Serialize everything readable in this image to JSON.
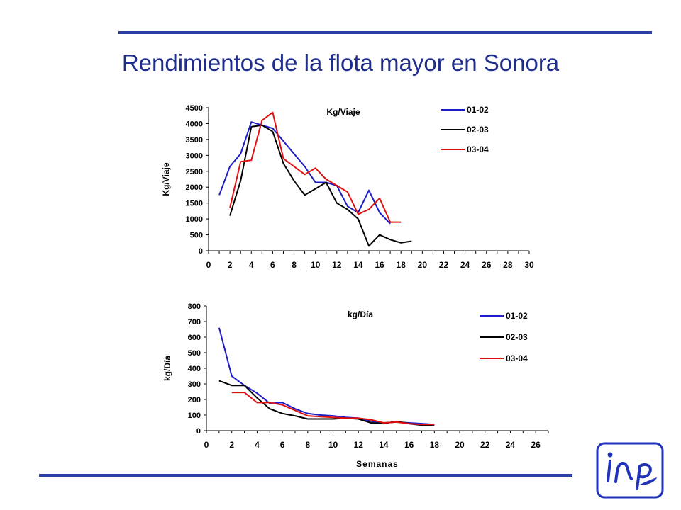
{
  "slide": {
    "title": "Rendimientos de la flota mayor en Sonora",
    "colors": {
      "rule": "#2b3ea8",
      "title": "#1f2e8c"
    }
  },
  "logo": {
    "icon": "inp-logo-icon",
    "text": "iNP",
    "color": "#2233bb"
  },
  "chart_data": [
    {
      "type": "line",
      "title": "Kg/Viaje",
      "xlabel": "",
      "ylabel": "Kg/Viaje",
      "xlim": [
        0,
        30
      ],
      "ylim": [
        0,
        4500
      ],
      "xticks": [
        0,
        2,
        4,
        6,
        8,
        10,
        12,
        14,
        16,
        18,
        20,
        22,
        24,
        26,
        28,
        30
      ],
      "yticks": [
        0,
        500,
        1000,
        1500,
        2000,
        2500,
        3000,
        3500,
        4000,
        4500
      ],
      "legend": "top-right",
      "grid": false,
      "series": [
        {
          "name": "01-02",
          "color": "#1c1cc8",
          "x": [
            1,
            2,
            3,
            4,
            5,
            6,
            7,
            8,
            9,
            10,
            11,
            12,
            13,
            14,
            15,
            16,
            17
          ],
          "y": [
            1750,
            2650,
            3050,
            4050,
            3950,
            3850,
            3450,
            3050,
            2650,
            2150,
            2150,
            2050,
            1400,
            1200,
            1900,
            1200,
            850
          ]
        },
        {
          "name": "02-03",
          "color": "#000000",
          "x": [
            2,
            3,
            4,
            5,
            6,
            7,
            8,
            9,
            10,
            11,
            12,
            13,
            14,
            15,
            16,
            17,
            18,
            19
          ],
          "y": [
            1100,
            2200,
            3900,
            3950,
            3750,
            2750,
            2200,
            1750,
            1950,
            2150,
            1500,
            1300,
            1000,
            150,
            500,
            350,
            250,
            300
          ]
        },
        {
          "name": "03-04",
          "color": "#e01010",
          "x": [
            2,
            3,
            4,
            5,
            6,
            7,
            8,
            9,
            10,
            11,
            12,
            13,
            14,
            15,
            16,
            17,
            18
          ],
          "y": [
            1350,
            2800,
            2850,
            4100,
            4350,
            2900,
            2650,
            2400,
            2600,
            2250,
            2050,
            1850,
            1150,
            1300,
            1650,
            900,
            900
          ]
        }
      ]
    },
    {
      "type": "line",
      "title": "kg/Día",
      "xlabel": "Semanas",
      "ylabel": "kg/Día",
      "xlim": [
        0,
        27
      ],
      "ylim": [
        0,
        800
      ],
      "xticks": [
        0,
        2,
        4,
        6,
        8,
        10,
        12,
        14,
        16,
        18,
        20,
        22,
        24,
        26
      ],
      "yticks": [
        0,
        100,
        200,
        300,
        400,
        500,
        600,
        700,
        800
      ],
      "legend": "top-right",
      "grid": false,
      "series": [
        {
          "name": "01-02",
          "color": "#1c1cc8",
          "x": [
            1,
            2,
            3,
            4,
            5,
            6,
            7,
            8,
            9,
            10,
            11,
            12,
            13,
            14,
            15,
            16,
            17,
            18
          ],
          "y": [
            660,
            350,
            290,
            240,
            175,
            180,
            140,
            110,
            100,
            95,
            85,
            80,
            60,
            50,
            55,
            50,
            45,
            40
          ]
        },
        {
          "name": "02-03",
          "color": "#000000",
          "x": [
            1,
            2,
            3,
            4,
            5,
            6,
            7,
            8,
            9,
            10,
            11,
            12,
            13,
            14,
            15,
            16,
            17,
            18
          ],
          "y": [
            320,
            290,
            290,
            210,
            140,
            110,
            95,
            75,
            75,
            75,
            80,
            75,
            50,
            45,
            60,
            45,
            35,
            35
          ]
        },
        {
          "name": "03-04",
          "color": "#e01010",
          "x": [
            2,
            3,
            4,
            5,
            6,
            7,
            8,
            9,
            10,
            11,
            12,
            13,
            14,
            15,
            16,
            17,
            18
          ],
          "y": [
            245,
            245,
            180,
            180,
            165,
            130,
            95,
            90,
            85,
            80,
            80,
            70,
            50,
            55,
            45,
            40,
            40
          ]
        }
      ]
    }
  ]
}
